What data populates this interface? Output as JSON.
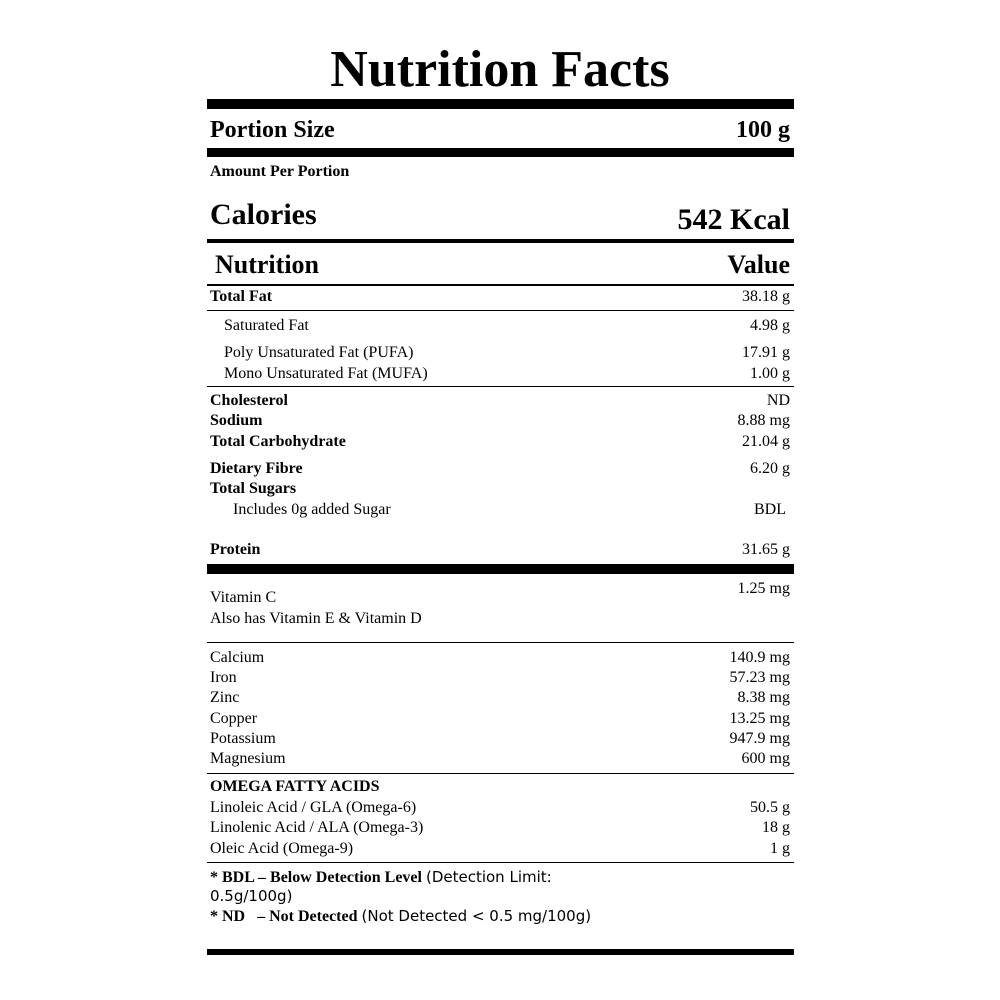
{
  "title": "Nutrition Facts",
  "portion": {
    "label": "Portion Size",
    "value": "100 g"
  },
  "amount_per_portion": "Amount Per Portion",
  "calories": {
    "label": "Calories",
    "value": "542 Kcal"
  },
  "header": {
    "nutrition": "Nutrition",
    "value": "Value"
  },
  "nutrients": [
    {
      "label": "Total Fat",
      "value": "38.18 g"
    },
    {
      "label": "Saturated Fat",
      "value": "4.98 g"
    },
    {
      "label": "Poly Unsaturated Fat (PUFA)",
      "value": "17.91 g"
    },
    {
      "label": "Mono Unsaturated Fat (MUFA)",
      "value": "1.00 g"
    },
    {
      "label": "Cholesterol",
      "value": "ND"
    },
    {
      "label": "Sodium",
      "value": "8.88 mg"
    },
    {
      "label": "Total Carbohydrate",
      "value": "21.04 g"
    },
    {
      "label": "Dietary Fibre",
      "value": "6.20 g"
    },
    {
      "label": "Total Sugars",
      "value": ""
    },
    {
      "label": "Includes 0g added Sugar",
      "value": "BDL"
    },
    {
      "label": "Protein",
      "value": "31.65 g"
    }
  ],
  "vitamins": [
    {
      "label": "Vitamin C",
      "value": "1.25 mg"
    },
    {
      "label": "Also has Vitamin E & Vitamin D",
      "value": ""
    }
  ],
  "minerals": [
    {
      "label": "Calcium",
      "value": "140.9 mg"
    },
    {
      "label": "Iron",
      "value": "57.23 mg"
    },
    {
      "label": "Zinc",
      "value": "8.38 mg"
    },
    {
      "label": "Copper",
      "value": "13.25 mg"
    },
    {
      "label": "Potassium",
      "value": "947.9 mg"
    },
    {
      "label": "Magnesium",
      "value": "600 mg"
    }
  ],
  "omega": {
    "heading": "OMEGA FATTY ACIDS",
    "items": [
      {
        "label": "Linoleic Acid / GLA (Omega-6)",
        "value": "50.5 g"
      },
      {
        "label": "Linolenic Acid / ALA (Omega-3)",
        "value": "18 g"
      },
      {
        "label": "Oleic Acid (Omega-9)",
        "value": "1 g"
      }
    ]
  },
  "footnotes": {
    "bdl_term": "* BDL – Below Detection Level",
    "bdl_desc_1": "(Detection Limit:",
    "bdl_desc_2": "0.5g/100g)",
    "nd_term": "* ND   – Not Detected",
    "nd_desc": "(Not Detected < 0.5 mg/100g)"
  }
}
